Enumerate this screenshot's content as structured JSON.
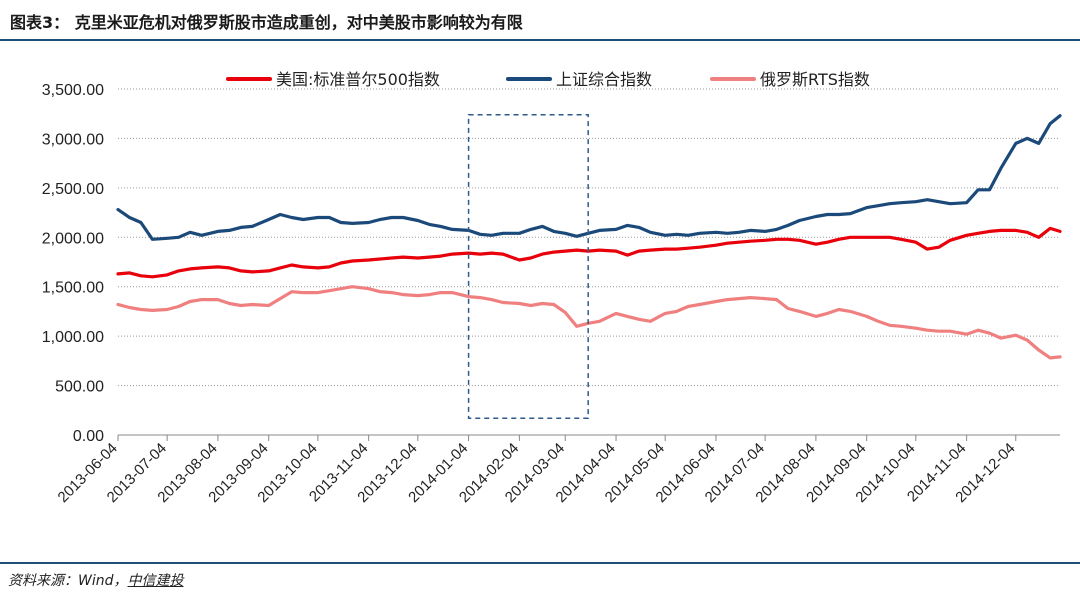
{
  "header": {
    "title": "图表3： 克里米亚危机对俄罗斯股市造成重创，对中美股市影响较为有限"
  },
  "footer": {
    "source_prefix": "资料来源：Wind，",
    "source_brand": "中信建投"
  },
  "chart_data": {
    "type": "line",
    "title": "",
    "xlabel": "",
    "ylabel": "",
    "ylim": [
      0,
      3500
    ],
    "yticks": [
      "0.00",
      "500.00",
      "1,000.00",
      "1,500.00",
      "2,000.00",
      "2,500.00",
      "3,000.00",
      "3,500.00"
    ],
    "grid": "horizontal dotted",
    "legend_position": "top-center",
    "x_tick_labels": [
      "2013-06-04",
      "2013-07-04",
      "2013-08-04",
      "2013-09-04",
      "2013-10-04",
      "2013-11-04",
      "2013-12-04",
      "2014-01-04",
      "2014-02-04",
      "2014-03-04",
      "2014-04-04",
      "2014-05-04",
      "2014-06-04",
      "2014-07-04",
      "2014-08-04",
      "2014-09-04",
      "2014-10-04",
      "2014-11-04",
      "2014-12-04"
    ],
    "x": [
      "2013-06-04",
      "2013-06-11",
      "2013-06-18",
      "2013-06-25",
      "2013-07-04",
      "2013-07-11",
      "2013-07-18",
      "2013-07-25",
      "2013-08-04",
      "2013-08-11",
      "2013-08-18",
      "2013-08-25",
      "2013-09-04",
      "2013-09-11",
      "2013-09-18",
      "2013-09-25",
      "2013-10-04",
      "2013-10-11",
      "2013-10-18",
      "2013-10-25",
      "2013-11-04",
      "2013-11-11",
      "2013-11-18",
      "2013-11-25",
      "2013-12-04",
      "2013-12-11",
      "2013-12-18",
      "2013-12-25",
      "2014-01-04",
      "2014-01-11",
      "2014-01-18",
      "2014-01-25",
      "2014-02-04",
      "2014-02-11",
      "2014-02-18",
      "2014-02-25",
      "2014-03-04",
      "2014-03-11",
      "2014-03-18",
      "2014-03-25",
      "2014-04-04",
      "2014-04-11",
      "2014-04-18",
      "2014-04-25",
      "2014-05-04",
      "2014-05-11",
      "2014-05-18",
      "2014-05-25",
      "2014-06-04",
      "2014-06-11",
      "2014-06-18",
      "2014-06-25",
      "2014-07-04",
      "2014-07-11",
      "2014-07-18",
      "2014-07-25",
      "2014-08-04",
      "2014-08-11",
      "2014-08-18",
      "2014-08-25",
      "2014-09-04",
      "2014-09-11",
      "2014-09-18",
      "2014-09-25",
      "2014-10-04",
      "2014-10-11",
      "2014-10-18",
      "2014-10-25",
      "2014-11-04",
      "2014-11-11",
      "2014-11-18",
      "2014-11-25",
      "2014-12-04",
      "2014-12-11",
      "2014-12-18",
      "2014-12-25",
      "2014-12-31"
    ],
    "series": [
      {
        "name": "美国:标准普尔500指数",
        "color": "#e8000b",
        "values": [
          1630,
          1640,
          1610,
          1600,
          1620,
          1660,
          1680,
          1690,
          1700,
          1690,
          1660,
          1650,
          1660,
          1690,
          1720,
          1700,
          1690,
          1700,
          1740,
          1760,
          1770,
          1780,
          1790,
          1800,
          1790,
          1800,
          1810,
          1830,
          1840,
          1830,
          1840,
          1830,
          1770,
          1790,
          1830,
          1850,
          1860,
          1870,
          1860,
          1870,
          1860,
          1820,
          1860,
          1870,
          1880,
          1880,
          1890,
          1900,
          1920,
          1940,
          1950,
          1960,
          1970,
          1980,
          1980,
          1970,
          1930,
          1950,
          1980,
          2000,
          2000,
          2000,
          2000,
          1980,
          1950,
          1880,
          1900,
          1970,
          2020,
          2040,
          2060,
          2070,
          2070,
          2050,
          2000,
          2090,
          2060
        ]
      },
      {
        "name": "上证综合指数",
        "color": "#1b4a7a",
        "values": [
          2280,
          2200,
          2150,
          1980,
          1990,
          2000,
          2050,
          2020,
          2060,
          2070,
          2100,
          2110,
          2180,
          2230,
          2200,
          2180,
          2200,
          2200,
          2150,
          2140,
          2150,
          2180,
          2200,
          2200,
          2170,
          2130,
          2110,
          2080,
          2070,
          2030,
          2020,
          2040,
          2040,
          2080,
          2110,
          2060,
          2040,
          2010,
          2040,
          2070,
          2080,
          2120,
          2100,
          2050,
          2020,
          2030,
          2020,
          2040,
          2050,
          2040,
          2050,
          2070,
          2060,
          2080,
          2120,
          2170,
          2210,
          2230,
          2230,
          2240,
          2300,
          2320,
          2340,
          2350,
          2360,
          2380,
          2360,
          2340,
          2350,
          2480,
          2480,
          2700,
          2950,
          3000,
          2950,
          3150,
          3230
        ]
      },
      {
        "name": "俄罗斯RTS指数",
        "color": "#f08080",
        "values": [
          1320,
          1290,
          1270,
          1260,
          1270,
          1300,
          1350,
          1370,
          1370,
          1330,
          1310,
          1320,
          1310,
          1380,
          1450,
          1440,
          1440,
          1460,
          1480,
          1500,
          1480,
          1450,
          1440,
          1420,
          1410,
          1420,
          1440,
          1440,
          1400,
          1390,
          1370,
          1340,
          1330,
          1310,
          1330,
          1320,
          1240,
          1100,
          1130,
          1150,
          1230,
          1200,
          1170,
          1150,
          1230,
          1250,
          1300,
          1320,
          1350,
          1370,
          1380,
          1390,
          1380,
          1370,
          1280,
          1250,
          1200,
          1230,
          1270,
          1250,
          1200,
          1150,
          1110,
          1100,
          1080,
          1060,
          1050,
          1050,
          1020,
          1060,
          1030,
          980,
          1010,
          960,
          860,
          780,
          790
        ]
      }
    ],
    "annotation": {
      "type": "dashed-rectangle",
      "x_start": "2014-01-04",
      "x_end": "2014-03-18",
      "y_min": 170,
      "y_max": 3240
    }
  }
}
